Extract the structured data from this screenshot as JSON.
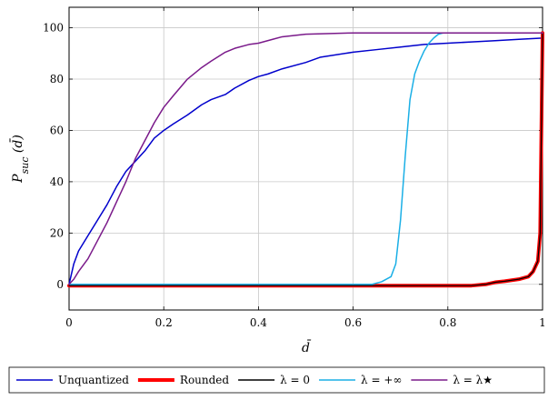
{
  "chart_data": {
    "type": "line",
    "xlabel": "d̄",
    "ylabel": "P_suc (d̄)",
    "ylabel_main": "P",
    "ylabel_sub": "suc",
    "ylabel_rest": " (d̄)",
    "xlim": [
      0,
      1
    ],
    "ylim": [
      -10,
      108
    ],
    "grid": true,
    "legend_position": "bottom-outside",
    "x_ticks": [
      0,
      0.2,
      0.4,
      0.6,
      0.8,
      1
    ],
    "x_tick_labels": [
      "0",
      "0.2",
      "0.4",
      "0.6",
      "0.8",
      "1"
    ],
    "y_ticks": [
      0,
      20,
      40,
      60,
      80,
      100
    ],
    "y_tick_labels": [
      "0",
      "20",
      "40",
      "60",
      "80",
      "100"
    ],
    "series": [
      {
        "name": "Unquantized",
        "color": "#0000cc",
        "width": 1.5,
        "points": [
          [
            0,
            0
          ],
          [
            0.01,
            8
          ],
          [
            0.02,
            13
          ],
          [
            0.04,
            19
          ],
          [
            0.06,
            25
          ],
          [
            0.08,
            31
          ],
          [
            0.1,
            38
          ],
          [
            0.12,
            44
          ],
          [
            0.14,
            48
          ],
          [
            0.16,
            52
          ],
          [
            0.18,
            57
          ],
          [
            0.2,
            60
          ],
          [
            0.22,
            62.5
          ],
          [
            0.25,
            66
          ],
          [
            0.28,
            70
          ],
          [
            0.3,
            72
          ],
          [
            0.33,
            74
          ],
          [
            0.35,
            76.5
          ],
          [
            0.38,
            79.5
          ],
          [
            0.4,
            81
          ],
          [
            0.42,
            82
          ],
          [
            0.45,
            84
          ],
          [
            0.5,
            86.5
          ],
          [
            0.53,
            88.5
          ],
          [
            0.6,
            90.5
          ],
          [
            0.65,
            91.5
          ],
          [
            0.7,
            92.5
          ],
          [
            0.75,
            93.5
          ],
          [
            0.8,
            94
          ],
          [
            0.85,
            94.5
          ],
          [
            0.9,
            95
          ],
          [
            0.95,
            95.5
          ],
          [
            1.0,
            96
          ]
        ]
      },
      {
        "name": "Rounded",
        "color": "#ff0000",
        "width": 4,
        "points": [
          [
            0,
            -0.5
          ],
          [
            0.85,
            -0.5
          ],
          [
            0.88,
            0
          ],
          [
            0.9,
            0.8
          ],
          [
            0.92,
            1.2
          ],
          [
            0.95,
            2
          ],
          [
            0.97,
            3
          ],
          [
            0.98,
            5
          ],
          [
            0.99,
            9
          ],
          [
            0.995,
            20
          ],
          [
            1.0,
            98
          ]
        ]
      },
      {
        "name": "λ = 0",
        "color": "#000000",
        "width": 1.2,
        "points": [
          [
            0,
            -0.5
          ],
          [
            0.85,
            -0.5
          ],
          [
            0.88,
            0
          ],
          [
            0.9,
            0.8
          ],
          [
            0.92,
            1.2
          ],
          [
            0.95,
            2
          ],
          [
            0.97,
            3
          ],
          [
            0.98,
            5
          ],
          [
            0.99,
            9
          ],
          [
            0.995,
            20
          ],
          [
            1.0,
            98
          ]
        ]
      },
      {
        "name": "λ = +∞",
        "color": "#1aafe6",
        "width": 1.5,
        "points": [
          [
            0,
            0
          ],
          [
            0.64,
            0
          ],
          [
            0.66,
            1
          ],
          [
            0.68,
            3
          ],
          [
            0.69,
            8
          ],
          [
            0.7,
            25
          ],
          [
            0.71,
            50
          ],
          [
            0.72,
            72
          ],
          [
            0.73,
            82
          ],
          [
            0.74,
            87
          ],
          [
            0.75,
            91
          ],
          [
            0.76,
            94
          ],
          [
            0.77,
            96
          ],
          [
            0.78,
            97.5
          ],
          [
            0.79,
            98
          ],
          [
            1.0,
            98
          ]
        ]
      },
      {
        "name": "λ = λ★",
        "color": "#7a1a8a",
        "width": 1.5,
        "points": [
          [
            0,
            0
          ],
          [
            0.01,
            2
          ],
          [
            0.02,
            5
          ],
          [
            0.04,
            10
          ],
          [
            0.06,
            17
          ],
          [
            0.08,
            24
          ],
          [
            0.1,
            32
          ],
          [
            0.12,
            40
          ],
          [
            0.14,
            49
          ],
          [
            0.16,
            56
          ],
          [
            0.18,
            63
          ],
          [
            0.2,
            69
          ],
          [
            0.22,
            73.5
          ],
          [
            0.25,
            80
          ],
          [
            0.28,
            84.5
          ],
          [
            0.3,
            87
          ],
          [
            0.33,
            90.5
          ],
          [
            0.35,
            92
          ],
          [
            0.38,
            93.5
          ],
          [
            0.4,
            94
          ],
          [
            0.43,
            95.5
          ],
          [
            0.45,
            96.5
          ],
          [
            0.5,
            97.5
          ],
          [
            0.6,
            98
          ],
          [
            0.7,
            98
          ],
          [
            1.0,
            98
          ]
        ]
      }
    ]
  }
}
